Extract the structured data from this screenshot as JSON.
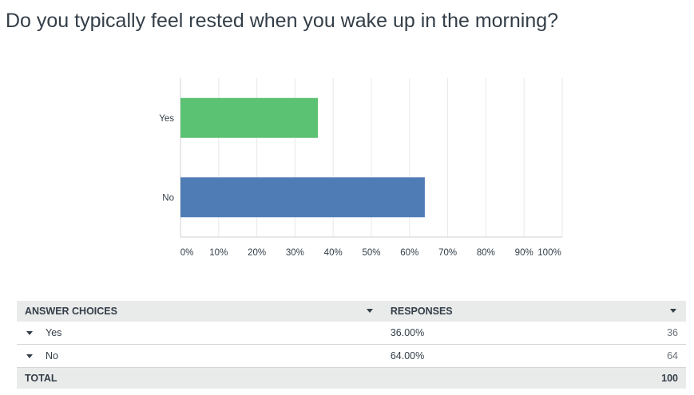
{
  "question": {
    "title": "Do you typically feel rested when you wake up in the morning?"
  },
  "chart_data": {
    "type": "bar",
    "orientation": "horizontal",
    "categories": [
      "Yes",
      "No"
    ],
    "values": [
      36,
      64
    ],
    "bar_colors": [
      "#5bc173",
      "#507cb6"
    ],
    "x_ticks": [
      "0%",
      "10%",
      "20%",
      "30%",
      "40%",
      "50%",
      "60%",
      "70%",
      "80%",
      "90%",
      "100%"
    ],
    "xlim": [
      0,
      100
    ],
    "grid": true,
    "title": "",
    "xlabel": "",
    "ylabel": ""
  },
  "table": {
    "headers": {
      "choices": "ANSWER CHOICES",
      "responses": "RESPONSES"
    },
    "rows": [
      {
        "label": "Yes",
        "percent": "36.00%",
        "count": "36"
      },
      {
        "label": "No",
        "percent": "64.00%",
        "count": "64"
      }
    ],
    "total": {
      "label": "TOTAL",
      "count": "100"
    }
  },
  "colors": {
    "text": "#333e48",
    "header_bg": "#e9eaea",
    "yes_bar": "#5bc173",
    "no_bar": "#507cb6"
  }
}
